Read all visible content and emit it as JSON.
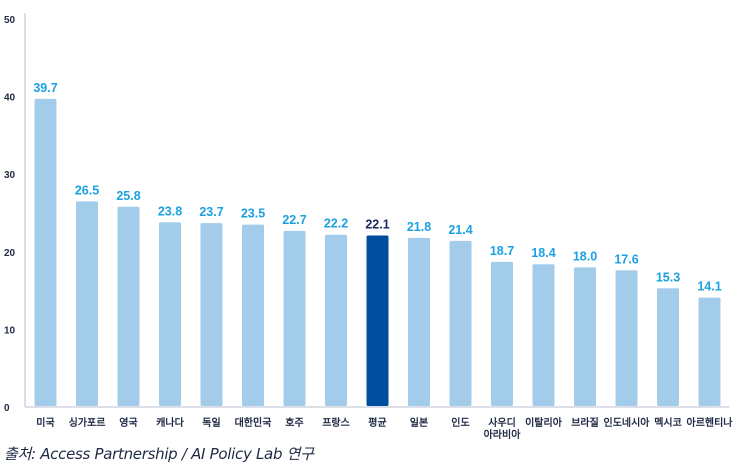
{
  "chart_data": {
    "type": "bar",
    "title": "",
    "xlabel": "",
    "ylabel": "",
    "ylim": [
      0,
      50
    ],
    "yticks": [
      0,
      10,
      20,
      30,
      40,
      50
    ],
    "grid": false,
    "legend": "none",
    "categories": [
      "미국",
      "싱가포르",
      "영국",
      "캐나다",
      "독일",
      "대한민국",
      "호주",
      "프랑스",
      "평균",
      "일본",
      "인도",
      "사우디\n아라비아",
      "이탈리아",
      "브라질",
      "인도네시아",
      "멕시코",
      "아르헨티나"
    ],
    "values": [
      39.7,
      26.5,
      25.8,
      23.8,
      23.7,
      23.5,
      22.7,
      22.2,
      22.1,
      21.8,
      21.4,
      18.7,
      18.4,
      18.0,
      17.6,
      15.3,
      14.1
    ],
    "value_labels": [
      "39.7",
      "26.5",
      "25.8",
      "23.8",
      "23.7",
      "23.5",
      "22.7",
      "22.2",
      "22.1",
      "21.8",
      "21.4",
      "18.7",
      "18.4",
      "18.0",
      "17.6",
      "15.3",
      "14.1"
    ],
    "highlight_category": "평균",
    "colors": {
      "bar": "#a3cbea",
      "highlight_bar": "#004f9f",
      "value_label": "#1ba1e2",
      "highlight_value_label": "#1a2a5c",
      "axis": "#d0d4e0"
    }
  },
  "source": "출처: Access Partnership / AI Policy Lab 연구"
}
